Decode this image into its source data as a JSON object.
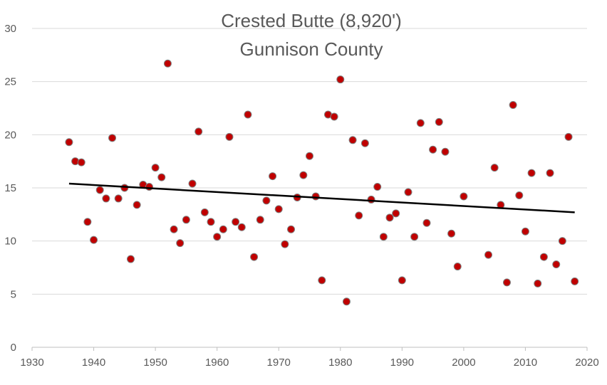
{
  "chart_data": {
    "type": "scatter",
    "title": "Crested Butte (8,920')",
    "subtitle": "Gunnison County",
    "xlabel": "",
    "ylabel": "",
    "xlim": [
      1930,
      2020
    ],
    "ylim": [
      0,
      30
    ],
    "x_ticks": [
      "1930",
      "1940",
      "1950",
      "1960",
      "1970",
      "1980",
      "1990",
      "2000",
      "2010",
      "2020"
    ],
    "y_ticks": [
      "0",
      "5",
      "10",
      "15",
      "20",
      "25",
      "30"
    ],
    "grid": true,
    "legend": "none",
    "colors": {
      "point": "#c00000",
      "point_edge": "#7f7f7f",
      "trend": "#000000",
      "grid": "#d9d9d9",
      "text": "#595959"
    },
    "trendline": {
      "type": "linear",
      "x": [
        1936,
        2018
      ],
      "y": [
        15.4,
        12.7
      ]
    },
    "series": [
      {
        "x": [
          1936,
          1937,
          1938,
          1939,
          1940,
          1941,
          1942,
          1943,
          1944,
          1945,
          1946,
          1947,
          1948,
          1949,
          1950,
          1951,
          1952,
          1953,
          1954,
          1955,
          1956,
          1957,
          1958,
          1959,
          1960,
          1961,
          1962,
          1963,
          1964,
          1965,
          1966,
          1967,
          1968,
          1969,
          1970,
          1971,
          1972,
          1973,
          1974,
          1975,
          1976,
          1977,
          1978,
          1979,
          1980,
          1981,
          1982,
          1983,
          1984,
          1985,
          1986,
          1987,
          1988,
          1989,
          1990,
          1991,
          1992,
          1993,
          1994,
          1995,
          1996,
          1997,
          1998,
          1999,
          2000,
          2004,
          2005,
          2006,
          2007,
          2008,
          2009,
          2010,
          2011,
          2012,
          2013,
          2014,
          2015,
          2016,
          2017,
          2018
        ],
        "y": [
          19.3,
          17.5,
          17.4,
          11.8,
          10.1,
          14.8,
          14.0,
          19.7,
          14.0,
          15.0,
          8.3,
          13.4,
          15.3,
          15.1,
          16.9,
          16.0,
          26.7,
          11.1,
          9.8,
          12.0,
          15.4,
          20.3,
          12.7,
          11.8,
          10.4,
          11.1,
          19.8,
          11.8,
          11.3,
          21.9,
          8.5,
          12.0,
          13.8,
          16.1,
          13.0,
          9.7,
          11.1,
          14.1,
          16.2,
          18.0,
          14.2,
          6.3,
          21.9,
          21.7,
          25.2,
          4.3,
          19.5,
          12.4,
          19.2,
          13.9,
          15.1,
          10.4,
          12.2,
          12.6,
          6.3,
          14.6,
          10.4,
          21.1,
          11.7,
          18.6,
          21.2,
          18.4,
          10.7,
          7.6,
          14.2,
          8.7,
          16.9,
          13.4,
          6.1,
          22.8,
          14.3,
          10.9,
          16.4,
          6.0,
          8.5,
          16.4,
          7.8,
          10.0,
          19.8,
          6.2
        ]
      }
    ]
  }
}
